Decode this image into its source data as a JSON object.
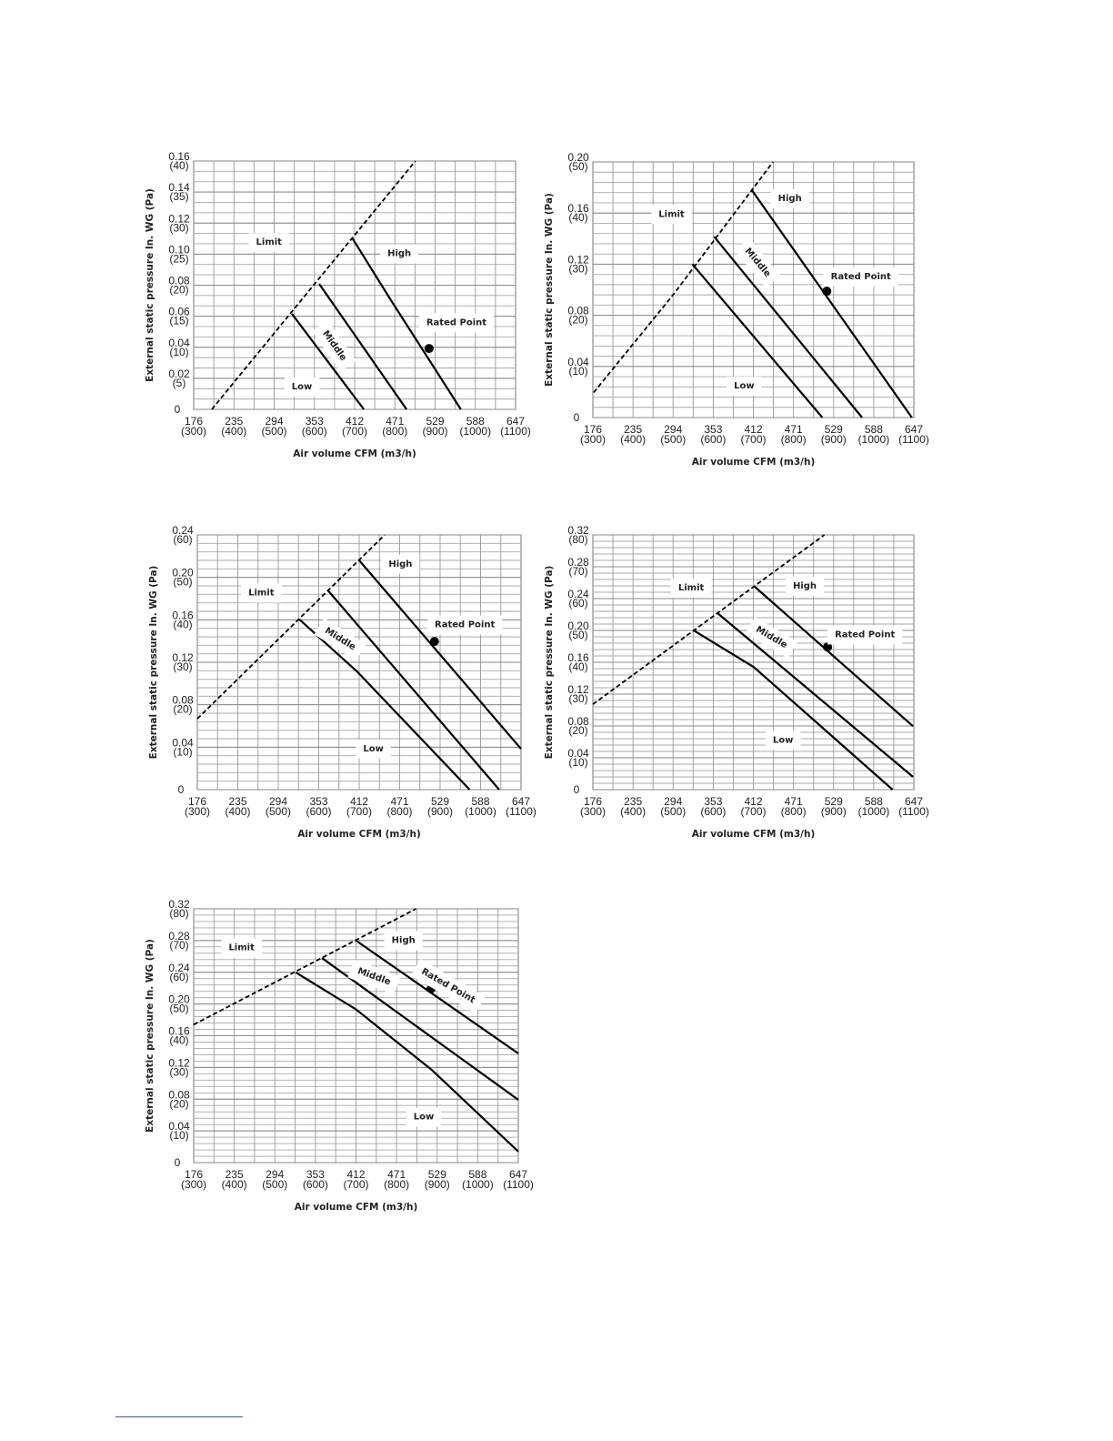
{
  "chart_data": [
    {
      "type": "line",
      "title": "",
      "xlabel": "Air volume CFM (m3/h)",
      "ylabel": "External static pressure In. WG (Pa)",
      "xlim": [
        300,
        1100
      ],
      "ylim": [
        0,
        40
      ],
      "grid": true,
      "grid_step_pa": 1.667,
      "x_ticks": [
        [
          "176",
          "(300)",
          300
        ],
        [
          "235",
          "(400)",
          400
        ],
        [
          "294",
          "(500)",
          500
        ],
        [
          "353",
          "(600)",
          600
        ],
        [
          "412",
          "(700)",
          700
        ],
        [
          "471",
          "(800)",
          800
        ],
        [
          "529",
          "(900)",
          900
        ],
        [
          "588",
          "(1000)",
          1000
        ],
        [
          "647",
          "(1100)",
          1100
        ]
      ],
      "y_ticks": [
        [
          "0",
          "",
          0
        ],
        [
          "0.02",
          "(5)",
          5
        ],
        [
          "0.04",
          "(10)",
          10
        ],
        [
          "0.06",
          "(15)",
          15
        ],
        [
          "0.08",
          "(20)",
          20
        ],
        [
          "0.10",
          "(25)",
          25
        ],
        [
          "0.12",
          "(30)",
          30
        ],
        [
          "0.14",
          "(35)",
          35
        ],
        [
          "0.16",
          "(40)",
          40
        ]
      ],
      "series": [
        {
          "name": "Limit",
          "style": "dashed",
          "points": [
            [
              345,
              0
            ],
            [
              851,
              40
            ]
          ]
        },
        {
          "name": "Low",
          "style": "solid",
          "points": [
            [
              544,
              15.4
            ],
            [
              723,
              0
            ]
          ]
        },
        {
          "name": "Middle",
          "style": "solid",
          "points": [
            [
              612,
              20.2
            ],
            [
              829,
              0
            ]
          ]
        },
        {
          "name": "High",
          "style": "solid",
          "points": [
            [
              695,
              27.5
            ],
            [
              790,
              17.6
            ],
            [
              964,
              0
            ]
          ]
        }
      ],
      "rated_point": {
        "label": "Rated Point",
        "x": 885,
        "y": 9.8
      }
    },
    {
      "type": "line",
      "title": "",
      "xlabel": "Air volume CFM (m3/h)",
      "ylabel": "External static pressure In. WG (Pa)",
      "xlim": [
        300,
        1100
      ],
      "ylim": [
        0,
        50
      ],
      "grid": true,
      "grid_step_pa": 2,
      "x_ticks": [
        [
          "176",
          "(300)",
          300
        ],
        [
          "235",
          "(400)",
          400
        ],
        [
          "294",
          "(500)",
          500
        ],
        [
          "353",
          "(600)",
          600
        ],
        [
          "412",
          "(700)",
          700
        ],
        [
          "471",
          "(800)",
          800
        ],
        [
          "529",
          "(900)",
          900
        ],
        [
          "588",
          "(1000)",
          1000
        ],
        [
          "647",
          "(1100)",
          1100
        ]
      ],
      "y_ticks": [
        [
          "0",
          "",
          0
        ],
        [
          "0.04",
          "(10)",
          10
        ],
        [
          "0.08",
          "(20)",
          20
        ],
        [
          "0.12",
          "(30)",
          30
        ],
        [
          "0.16",
          "(40)",
          40
        ],
        [
          "0.20",
          "(50)",
          50
        ]
      ],
      "series": [
        {
          "name": "Limit",
          "style": "dashed",
          "points": [
            [
              302,
              4.9
            ],
            [
              500,
              24
            ],
            [
              749,
              50
            ]
          ]
        },
        {
          "name": "Low",
          "style": "solid",
          "points": [
            [
              548,
              30
            ],
            [
              872,
              0
            ]
          ]
        },
        {
          "name": "Middle",
          "style": "solid",
          "points": [
            [
              602,
              35.4
            ],
            [
              971,
              0
            ]
          ]
        },
        {
          "name": "High",
          "style": "solid",
          "points": [
            [
              696,
              44.5
            ],
            [
              1095,
              0
            ]
          ]
        }
      ],
      "rated_point": {
        "label": "Rated Point",
        "x": 883,
        "y": 24.7
      }
    },
    {
      "type": "line",
      "title": "",
      "xlabel": "Air volume CFM (m3/h)",
      "ylabel": "External static pressure In. WG (Pa)",
      "xlim": [
        300,
        1100
      ],
      "ylim": [
        0,
        60
      ],
      "grid": true,
      "grid_step_pa": 2,
      "x_ticks": [
        [
          "176",
          "(300)",
          300
        ],
        [
          "235",
          "(400)",
          400
        ],
        [
          "294",
          "(500)",
          500
        ],
        [
          "353",
          "(600)",
          600
        ],
        [
          "412",
          "(700)",
          700
        ],
        [
          "471",
          "(800)",
          800
        ],
        [
          "529",
          "(900)",
          900
        ],
        [
          "588",
          "(1000)",
          1000
        ],
        [
          "647",
          "(1100)",
          1100
        ]
      ],
      "y_ticks": [
        [
          "0",
          "",
          0
        ],
        [
          "0.04",
          "(10)",
          10
        ],
        [
          "0.08",
          "(20)",
          20
        ],
        [
          "0.12",
          "(30)",
          30
        ],
        [
          "0.16",
          "(40)",
          40
        ],
        [
          "0.20",
          "(50)",
          50
        ],
        [
          "0.24",
          "(60)",
          60
        ]
      ],
      "series": [
        {
          "name": "Limit",
          "style": "dashed",
          "points": [
            [
              300,
              16.7
            ],
            [
              763,
              60
            ]
          ]
        },
        {
          "name": "Low",
          "style": "solid",
          "points": [
            [
              552,
              40.1
            ],
            [
              695,
              27.8
            ],
            [
              973,
              0
            ]
          ]
        },
        {
          "name": "Middle",
          "style": "solid",
          "points": [
            [
              623,
              46.9
            ],
            [
              1046,
              0
            ]
          ]
        },
        {
          "name": "High",
          "style": "solid",
          "points": [
            [
              700,
              54
            ],
            [
              1100,
              9.6
            ]
          ]
        }
      ],
      "rated_point": {
        "label": "Rated Point",
        "x": 886,
        "y": 34.9
      }
    },
    {
      "type": "line",
      "title": "",
      "xlabel": "Air volume CFM (m3/h)",
      "ylabel": "External static pressure In. WG (Pa)",
      "xlim": [
        300,
        1100
      ],
      "ylim": [
        0,
        80
      ],
      "grid": true,
      "grid_step_pa": 2,
      "x_ticks": [
        [
          "176",
          "(300)",
          300
        ],
        [
          "235",
          "(400)",
          400
        ],
        [
          "294",
          "(500)",
          500
        ],
        [
          "353",
          "(600)",
          600
        ],
        [
          "412",
          "(700)",
          700
        ],
        [
          "471",
          "(800)",
          800
        ],
        [
          "529",
          "(900)",
          900
        ],
        [
          "588",
          "(1000)",
          1000
        ],
        [
          "647",
          "(1100)",
          1100
        ]
      ],
      "y_ticks": [
        [
          "0",
          "",
          0
        ],
        [
          "0.04",
          "(10)",
          10
        ],
        [
          "0.08",
          "(20)",
          20
        ],
        [
          "0.12",
          "(30)",
          30
        ],
        [
          "0.16",
          "(40)",
          40
        ],
        [
          "0.20",
          "(50)",
          50
        ],
        [
          "0.24",
          "(60)",
          60
        ],
        [
          "0.28",
          "(70)",
          70
        ],
        [
          "0.32",
          "(80)",
          80
        ]
      ],
      "series": [
        {
          "name": "Limit",
          "style": "dashed",
          "points": [
            [
              300,
              26.8
            ],
            [
              877,
              80
            ]
          ]
        },
        {
          "name": "Low",
          "style": "solid",
          "points": [
            [
              550,
              50.1
            ],
            [
              701,
              38.5
            ],
            [
              1047,
              0
            ]
          ]
        },
        {
          "name": "Middle",
          "style": "solid",
          "points": [
            [
              610,
              55.5
            ],
            [
              1098,
              4
            ]
          ]
        },
        {
          "name": "High",
          "style": "solid",
          "points": [
            [
              701,
              64
            ],
            [
              1098,
              19.9
            ]
          ]
        }
      ],
      "rated_point": {
        "label": "Rated Point",
        "x": 885,
        "y": 44.8
      }
    },
    {
      "type": "line",
      "title": "",
      "xlabel": "Air volume CFM (m3/h)",
      "ylabel": "External static pressure In. WG (Pa)",
      "xlim": [
        300,
        1100
      ],
      "ylim": [
        0,
        80
      ],
      "grid": true,
      "grid_step_pa": 2,
      "x_ticks": [
        [
          "176",
          "(300)",
          300
        ],
        [
          "235",
          "(400)",
          400
        ],
        [
          "294",
          "(500)",
          500
        ],
        [
          "353",
          "(600)",
          600
        ],
        [
          "412",
          "(700)",
          700
        ],
        [
          "471",
          "(800)",
          800
        ],
        [
          "529",
          "(900)",
          900
        ],
        [
          "588",
          "(1000)",
          1000
        ],
        [
          "647",
          "(1100)",
          1100
        ]
      ],
      "y_ticks": [
        [
          "0",
          "",
          0
        ],
        [
          "0.04",
          "(10)",
          10
        ],
        [
          "0.08",
          "(20)",
          20
        ],
        [
          "0.12",
          "(30)",
          30
        ],
        [
          "0.16",
          "(40)",
          40
        ],
        [
          "0.20",
          "(50)",
          50
        ],
        [
          "0.24",
          "(60)",
          60
        ],
        [
          "0.28",
          "(70)",
          70
        ],
        [
          "0.32",
          "(80)",
          80
        ]
      ],
      "series": [
        {
          "name": "Limit",
          "style": "dashed",
          "points": [
            [
              300,
              43.5
            ],
            [
              848,
              80
            ]
          ]
        },
        {
          "name": "Low",
          "style": "solid",
          "points": [
            [
              552,
              59.9
            ],
            [
              700,
              48.3
            ],
            [
              887,
              29.2
            ],
            [
              1100,
              3.5
            ]
          ]
        },
        {
          "name": "Middle",
          "style": "solid",
          "points": [
            [
              616,
              64.5
            ],
            [
              1100,
              19.8
            ]
          ]
        },
        {
          "name": "High",
          "style": "solid",
          "points": [
            [
              700,
              70
            ],
            [
              1100,
              34.4
            ]
          ]
        }
      ],
      "rated_point": {
        "label": "Rated Point",
        "x": 885,
        "y": 54.8
      }
    }
  ]
}
